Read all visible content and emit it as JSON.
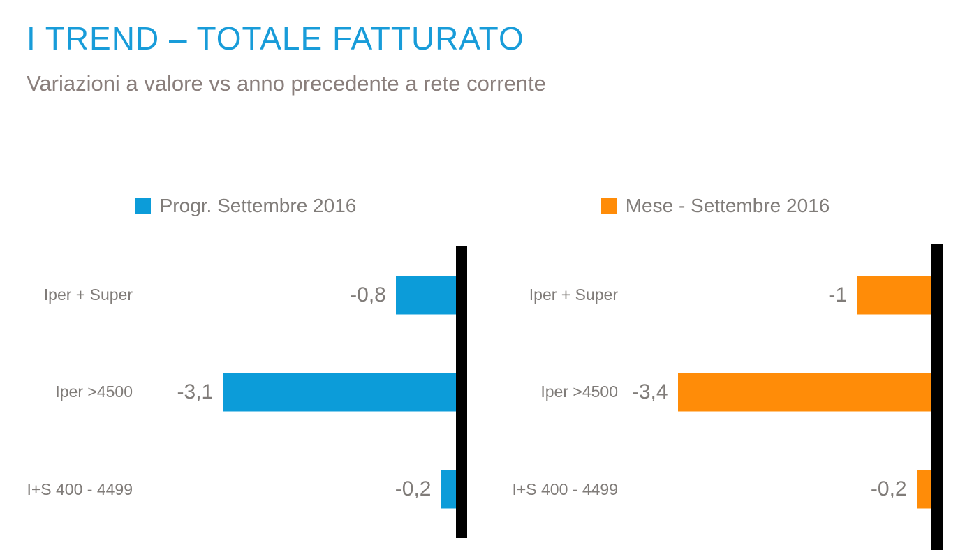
{
  "header": {
    "title": "I TREND – TOTALE FATTURATO",
    "subtitle": "Variazioni a valore vs anno precedente a rete corrente"
  },
  "colors": {
    "title_blue": "#189CD9",
    "subtitle_gray": "#8A7F7C",
    "text_gray": "#807C79",
    "series_blue": "#0C9CD9",
    "series_orange": "#FF8C08",
    "axis_black": "#000000",
    "background": "#FFFFFF"
  },
  "chart_data": [
    {
      "type": "bar",
      "orientation": "horizontal",
      "legend": "Progr. Settembre 2016",
      "legend_position": "top",
      "series_color": "#0C9CD9",
      "categories": [
        "Iper + Super",
        "Iper >4500",
        "I+S 400 - 4499"
      ],
      "values": [
        -0.8,
        -3.1,
        -0.2
      ],
      "value_labels": [
        "-0,8",
        "-3,1",
        "-0,2"
      ],
      "xlim": [
        -4.3,
        0
      ],
      "scale_max": 4.3,
      "grid": false,
      "zero_axis": "right"
    },
    {
      "type": "bar",
      "orientation": "horizontal",
      "legend": "Mese - Settembre 2016",
      "legend_position": "top",
      "series_color": "#FF8C08",
      "categories": [
        "Iper + Super",
        "Iper >4500",
        "I+S 400 - 4499"
      ],
      "values": [
        -1,
        -3.4,
        -0.2
      ],
      "value_labels": [
        "-1",
        "-3,4",
        "-0,2"
      ],
      "xlim": [
        -4.2,
        0
      ],
      "scale_max": 4.2,
      "grid": false,
      "zero_axis": "right"
    }
  ]
}
